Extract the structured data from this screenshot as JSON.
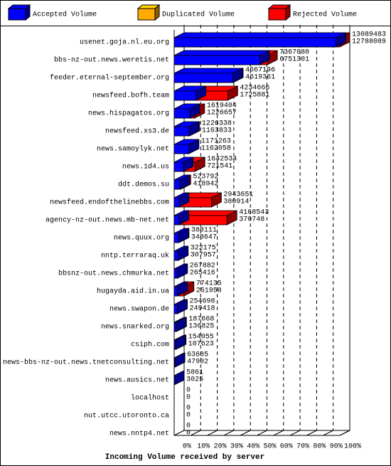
{
  "chart_data": {
    "type": "bar3d",
    "title": "Incoming Volume received by server",
    "legend": [
      {
        "name": "Accepted Volume",
        "color": "#0000ff"
      },
      {
        "name": "Duplicated Volume",
        "color": "#ffaa00"
      },
      {
        "name": "Rejected Volume",
        "color": "#ff0000"
      }
    ],
    "categories": [
      "usenet.goja.nl.eu.org",
      "bbs-nz-out.news.weretis.net",
      "feeder.eternal-september.org",
      "newsfeed.bofh.team",
      "news.hispagatos.org",
      "newsfeed.xs3.de",
      "news.samoylyk.net",
      "news.1d4.us",
      "ddt.demos.su",
      "newsfeed.endofthelinebbs.com",
      "agency-nz-out.news.mb-net.net",
      "news.quux.org",
      "nntp.terraraq.uk",
      "bbsnz-out.news.chmurka.net",
      "hugayda.aid.in.ua",
      "news.swapon.de",
      "news.snarked.org",
      "csiph.com",
      "news-bbs-nz-out.news.tnetconsulting.net",
      "news.ausics.net",
      "localhost",
      "nut.utcc.utoronto.ca",
      "news.nntp4.net"
    ],
    "totals": [
      13089483,
      7367080,
      4667196,
      4234666,
      1619404,
      1226338,
      1171263,
      1642534,
      523792,
      2943651,
      4168543,
      388111,
      322175,
      267882,
      774135,
      254698,
      187668,
      154055,
      63685,
      5861,
      0,
      0,
      0
    ],
    "accepted": [
      12788089,
      6751301,
      4619361,
      1725881,
      1226657,
      1163833,
      1162058,
      721541,
      418942,
      380914,
      370748,
      348647,
      307957,
      265416,
      251958,
      249418,
      136825,
      107623,
      47902,
      3025,
      0,
      0,
      0
    ],
    "total_kind": [
      2,
      2,
      2,
      2,
      2,
      2,
      2,
      2,
      2,
      2,
      2,
      2,
      1,
      2,
      2,
      2,
      2,
      2,
      1,
      1,
      2,
      2,
      2
    ],
    "xlim": [
      0,
      13089483
    ],
    "xticks": [
      {
        "value": 0,
        "label": "0%"
      },
      {
        "value": 1308948.3,
        "label": "10%"
      },
      {
        "value": 2617896.6,
        "label": "20%"
      },
      {
        "value": 3926844.9,
        "label": "30%"
      },
      {
        "value": 5235793.2,
        "label": "40%"
      },
      {
        "value": 6544741.5,
        "label": "50%"
      },
      {
        "value": 7853689.8,
        "label": "60%"
      },
      {
        "value": 9162638.1,
        "label": "70%"
      },
      {
        "value": 10471586.4,
        "label": "80%"
      },
      {
        "value": 11780534.7,
        "label": "90%"
      },
      {
        "value": 13089483,
        "label": "100%"
      }
    ],
    "grid": true
  }
}
